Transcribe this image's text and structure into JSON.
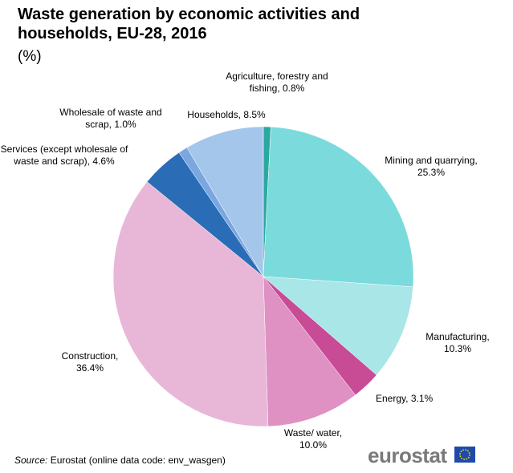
{
  "chart_data": {
    "type": "pie",
    "title": "Waste generation by economic activities and households, EU-28, 2016",
    "subtitle": "(%)",
    "categories": [
      "Agriculture, forestry and fishing,",
      "Mining and quarrying,",
      "Manufacturing,",
      "Energy,",
      "Waste/ water,",
      "Construction,",
      "Services (except wholesale of waste and scrap),",
      "Wholesale of waste and scrap,",
      "Households,"
    ],
    "values": [
      0.8,
      25.3,
      10.3,
      3.1,
      10.0,
      36.4,
      4.6,
      1.0,
      8.5
    ],
    "value_labels": [
      "0.8%",
      "25.3%",
      "10.3%",
      "3.1%",
      "10.0%",
      "36.4%",
      "4.6%",
      "1.0%",
      "8.5%"
    ],
    "colors": [
      "#2aa9a0",
      "#7bdadb",
      "#a8e6e8",
      "#c84b96",
      "#de91c2",
      "#e8b7d7",
      "#2a6db6",
      "#7aa7e0",
      "#a5c6eb"
    ],
    "source_label": "Source:",
    "source": "Eurostat (online data code: env_wasgen)",
    "logo": "eurostat"
  }
}
